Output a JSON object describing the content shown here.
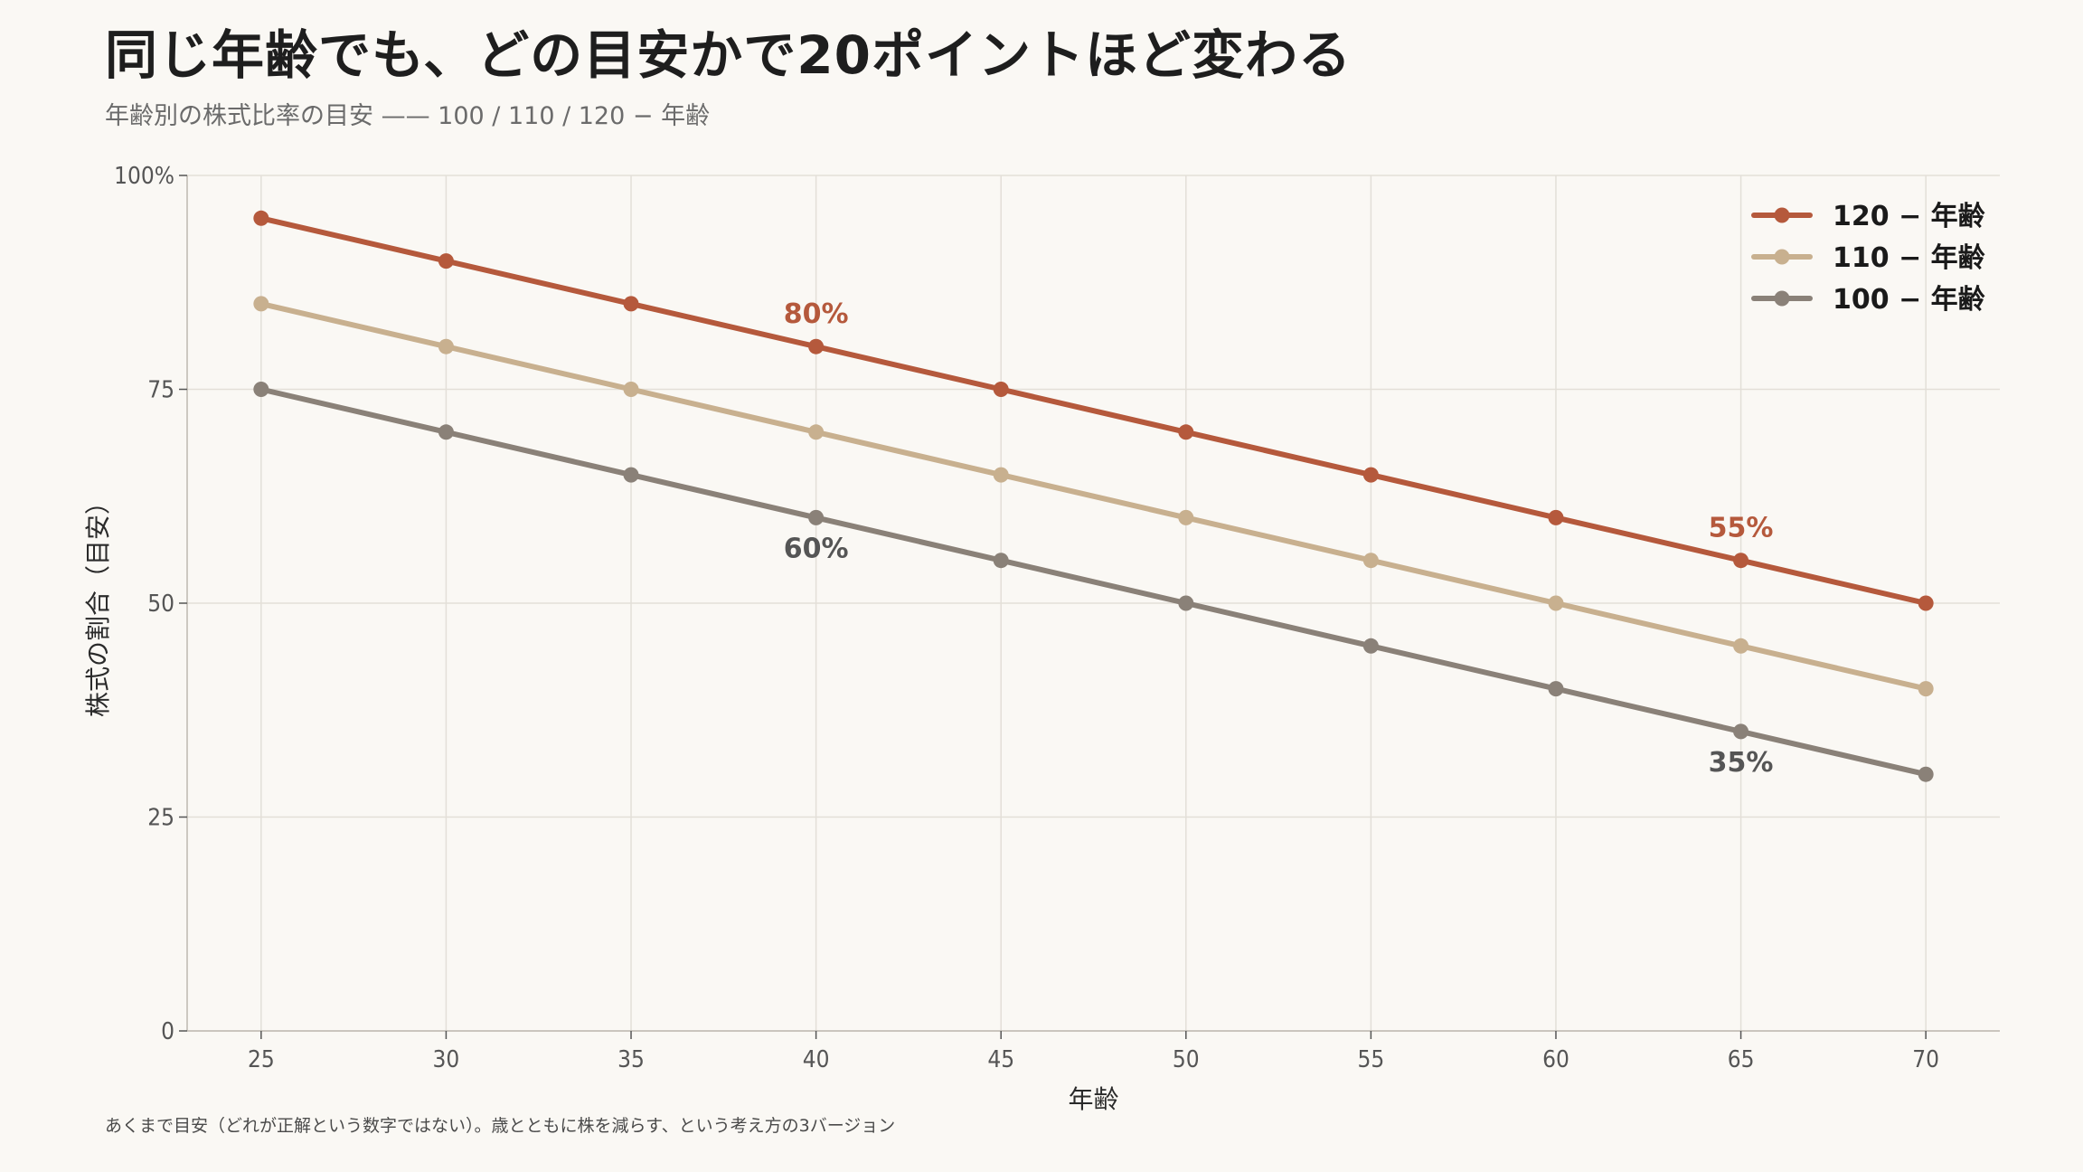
{
  "title": "同じ年齢でも、どの目安かで20ポイントほど変わる",
  "subtitle": "年齢別の株式比率の目安 —— 100 / 110 / 120 − 年齢",
  "footnote": "あくまで目安（どれが正解という数字ではない）。歳とともに株を減らす、という考え方の3バージョン",
  "chart_data": {
    "type": "line",
    "x": [
      25,
      30,
      35,
      40,
      45,
      50,
      55,
      60,
      65,
      70
    ],
    "xlabel": "年齢",
    "ylabel": "株式の割合（目安）",
    "xlim": [
      23,
      72
    ],
    "ylim": [
      0,
      100
    ],
    "xticks": [
      25,
      30,
      35,
      40,
      45,
      50,
      55,
      60,
      65,
      70
    ],
    "yticks": [
      {
        "value": 0,
        "label": "0"
      },
      {
        "value": 25,
        "label": "25"
      },
      {
        "value": 50,
        "label": "50"
      },
      {
        "value": 75,
        "label": "75"
      },
      {
        "value": 100,
        "label": "100%"
      }
    ],
    "grid": true,
    "legend_position": "top-right",
    "series": [
      {
        "name": "120 − 年齢",
        "color": "#b5593c",
        "values": [
          95,
          90,
          85,
          80,
          75,
          70,
          65,
          60,
          55,
          50
        ]
      },
      {
        "name": "110 − 年齢",
        "color": "#c8b08f",
        "values": [
          85,
          80,
          75,
          70,
          65,
          60,
          55,
          50,
          45,
          40
        ]
      },
      {
        "name": "100 − 年齢",
        "color": "#8a8178",
        "values": [
          75,
          70,
          65,
          60,
          55,
          50,
          45,
          40,
          35,
          30
        ]
      }
    ],
    "annotations": [
      {
        "text": "80%",
        "x": 40,
        "y": 80,
        "series": 0,
        "placement": "above",
        "color": "#b5593c"
      },
      {
        "text": "60%",
        "x": 40,
        "y": 60,
        "series": 2,
        "placement": "below",
        "color": "#555555"
      },
      {
        "text": "55%",
        "x": 65,
        "y": 55,
        "series": 0,
        "placement": "above",
        "color": "#b5593c"
      },
      {
        "text": "35%",
        "x": 65,
        "y": 35,
        "series": 2,
        "placement": "below",
        "color": "#555555"
      }
    ]
  }
}
